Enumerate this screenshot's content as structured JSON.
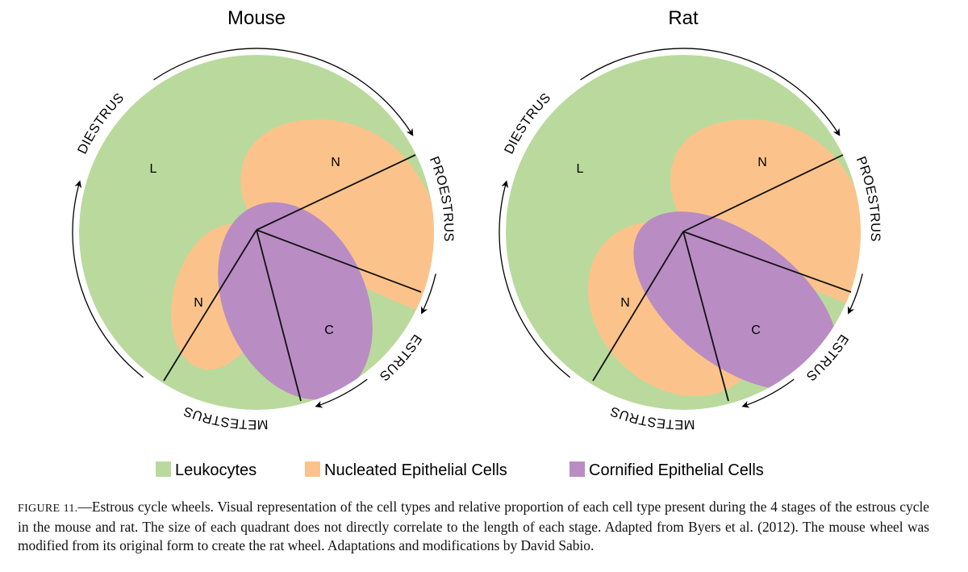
{
  "wheels": [
    {
      "title": "Mouse",
      "stages": [
        "DIESTRUS",
        "PROESTRUS",
        "ESTRUS",
        "METESTRUS"
      ],
      "regions": [
        "L",
        "N",
        "N",
        "C"
      ]
    },
    {
      "title": "Rat",
      "stages": [
        "DIESTRUS",
        "PROESTRUS",
        "ESTRUS",
        "METESTRUS"
      ],
      "regions": [
        "L",
        "N",
        "N",
        "C"
      ]
    }
  ],
  "legend": [
    {
      "label": "Leukocytes",
      "color": "#b9da9c"
    },
    {
      "label": "Nucleated Epithelial Cells",
      "color": "#fbc38b"
    },
    {
      "label": "Cornified Epithelial Cells",
      "color": "#b98cc4"
    }
  ],
  "caption": {
    "label": "FIGURE 11.",
    "text": "—Estrous cycle wheels. Visual representation of the cell types and relative proportion of each cell type present during the 4 stages of the estrous cycle in the mouse and rat. The size of each quadrant does not directly correlate to the length of each stage. Adapted from Byers et al. (2012). The mouse wheel was modified from its original form to create the rat wheel. Adaptations and modifications by David Sabio."
  }
}
